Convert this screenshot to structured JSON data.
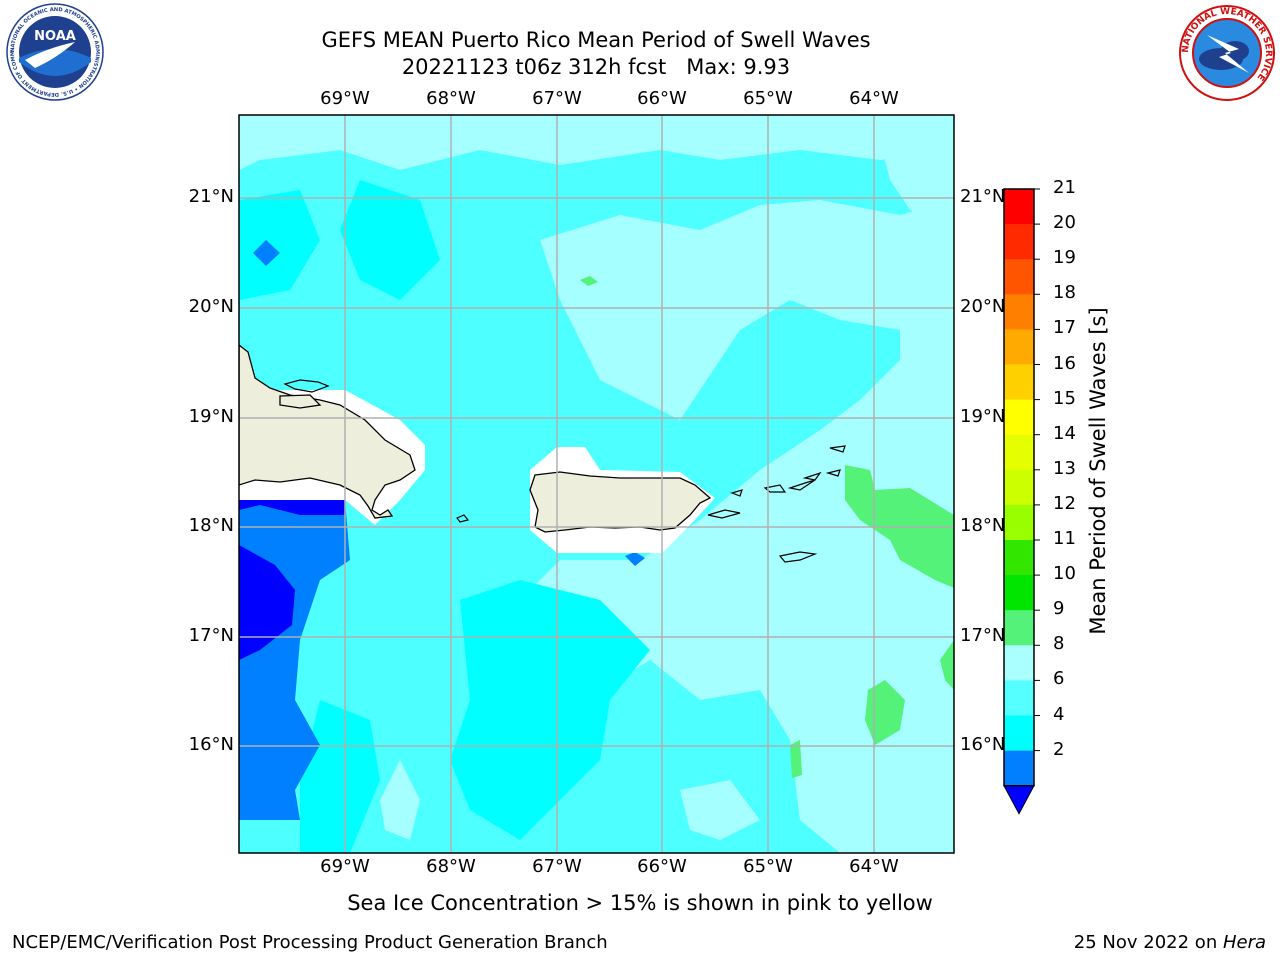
{
  "title_line1": "GEFS MEAN Puerto Rico Mean Period of Swell Waves",
  "title_line2": "20221123 t06z 312h fcst   Max: 9.93",
  "longitude_labels": [
    "69°W",
    "68°W",
    "67°W",
    "66°W",
    "65°W",
    "64°W"
  ],
  "latitude_labels": [
    "21°N",
    "20°N",
    "19°N",
    "18°N",
    "17°N",
    "16°N"
  ],
  "colorbar": {
    "label": "Mean Period of Swell Waves [s]",
    "ticks": [
      "21",
      "20",
      "19",
      "18",
      "17",
      "16",
      "15",
      "14",
      "13",
      "12",
      "11",
      "10",
      "9",
      "8",
      "6",
      "4",
      "2"
    ],
    "colors": [
      "#ff0000",
      "#ff2a00",
      "#ff5500",
      "#ff7f00",
      "#ffaa00",
      "#ffd000",
      "#ffff00",
      "#e6ff00",
      "#ccff00",
      "#99ff00",
      "#33e600",
      "#00e600",
      "#55f27a",
      "#aaffff",
      "#55ffff",
      "#00ffff",
      "#007fff"
    ],
    "extend_color": "#0000ff"
  },
  "map_colors": {
    "ocean_main": "#4dffff",
    "ocean_light": "#a6ffff",
    "ocean_cyan": "#00ffff",
    "ocean_blue": "#007fff",
    "ocean_darkblue": "#0000ff",
    "green": "#55f27a",
    "land": "#eeeedd",
    "nodata": "#ffffff",
    "grid": "#b0b0b0"
  },
  "footer_note": "Sea Ice Concentration > 15% is shown in pink to yellow",
  "credit": "NCEP/EMC/Verification Post Processing Product Generation Branch",
  "date_text": "25 Nov 2022 on ",
  "machine": "Hera",
  "logos": {
    "noaa_text": "NOAA",
    "noaa_ring": "NATIONAL OCEANIC AND ATMOSPHERIC ADMINISTRATION • U.S. DEPARTMENT OF COMMERCE",
    "nws_ring": "NATIONAL WEATHER SERVICE"
  }
}
